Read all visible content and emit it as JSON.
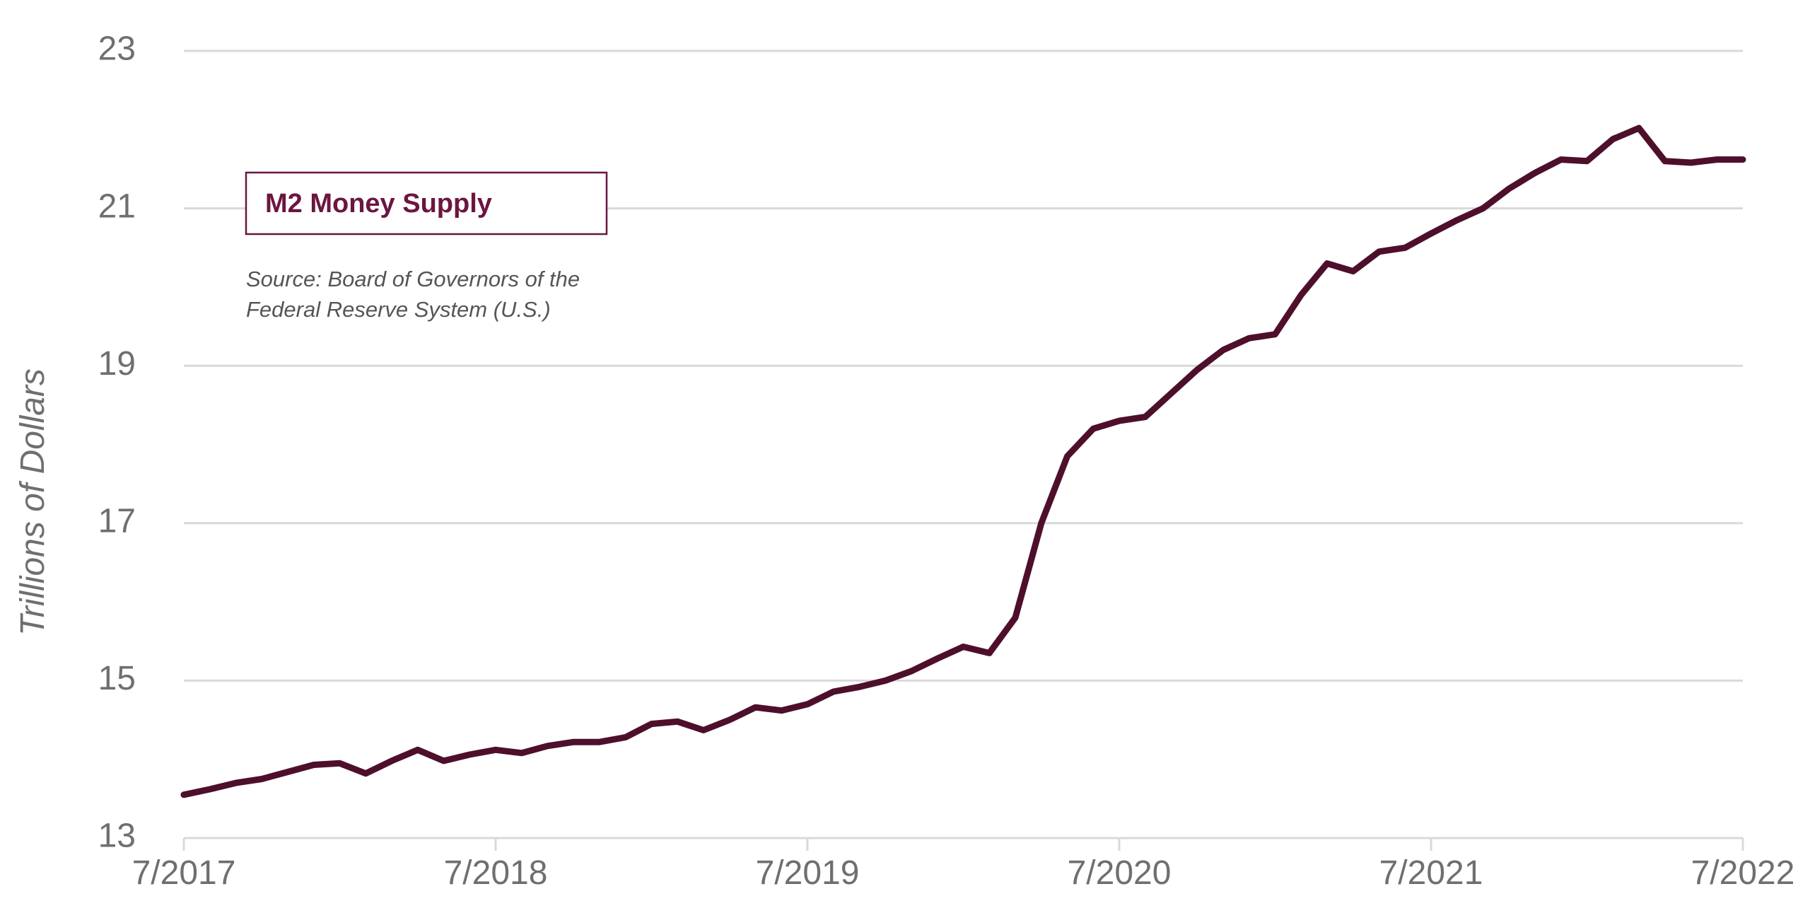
{
  "chart_data": {
    "type": "line",
    "title": "",
    "xlabel": "",
    "ylabel": "Trillions of Dollars",
    "ylim": [
      13,
      23
    ],
    "yticks": [
      "13",
      "15",
      "17",
      "19",
      "21",
      "23"
    ],
    "xlim": [
      "2017-07",
      "2022-07"
    ],
    "xticks": [
      "7/2017",
      "7/2018",
      "7/2019",
      "7/2020",
      "7/2021",
      "7/2022"
    ],
    "grid": "horizontal",
    "legend_placement": "upper-left",
    "series": [
      {
        "name": "M2 Money Supply",
        "color": "#4e0f2c",
        "x": [
          "2017-07",
          "2017-08",
          "2017-09",
          "2017-10",
          "2017-11",
          "2017-12",
          "2018-01",
          "2018-02",
          "2018-03",
          "2018-04",
          "2018-05",
          "2018-06",
          "2018-07",
          "2018-08",
          "2018-09",
          "2018-10",
          "2018-11",
          "2018-12",
          "2019-01",
          "2019-02",
          "2019-03",
          "2019-04",
          "2019-05",
          "2019-06",
          "2019-07",
          "2019-08",
          "2019-09",
          "2019-10",
          "2019-11",
          "2019-12",
          "2020-01",
          "2020-02",
          "2020-03",
          "2020-04",
          "2020-05",
          "2020-06",
          "2020-07",
          "2020-08",
          "2020-09",
          "2020-10",
          "2020-11",
          "2020-12",
          "2021-01",
          "2021-02",
          "2021-03",
          "2021-04",
          "2021-05",
          "2021-06",
          "2021-07",
          "2021-08",
          "2021-09",
          "2021-10",
          "2021-11",
          "2021-12",
          "2022-01",
          "2022-02",
          "2022-03",
          "2022-04",
          "2022-05",
          "2022-06",
          "2022-07"
        ],
        "values": [
          13.55,
          13.62,
          13.7,
          13.75,
          13.84,
          13.93,
          13.95,
          13.82,
          13.98,
          14.12,
          13.98,
          14.06,
          14.12,
          14.08,
          14.17,
          14.22,
          14.22,
          14.28,
          14.45,
          14.48,
          14.37,
          14.5,
          14.66,
          14.62,
          14.7,
          14.86,
          14.92,
          15.0,
          15.12,
          15.28,
          15.43,
          15.35,
          15.8,
          17.0,
          17.85,
          18.2,
          18.3,
          18.35,
          18.65,
          18.95,
          19.2,
          19.35,
          19.4,
          19.9,
          20.3,
          20.2,
          20.45,
          20.5,
          20.68,
          20.85,
          21.0,
          21.25,
          21.45,
          21.62,
          21.6,
          21.88,
          22.02,
          21.6,
          21.58,
          21.62,
          21.62
        ]
      }
    ]
  },
  "legend": {
    "label": "M2 Money Supply"
  },
  "source": {
    "line1": "Source: Board of Governors of the",
    "line2": "Federal Reserve System (U.S.)"
  },
  "colors": {
    "line": "#4e0f2c",
    "legend_accent": "#6b1640",
    "grid": "#d9d9d9",
    "text": "#6f6f6f"
  }
}
